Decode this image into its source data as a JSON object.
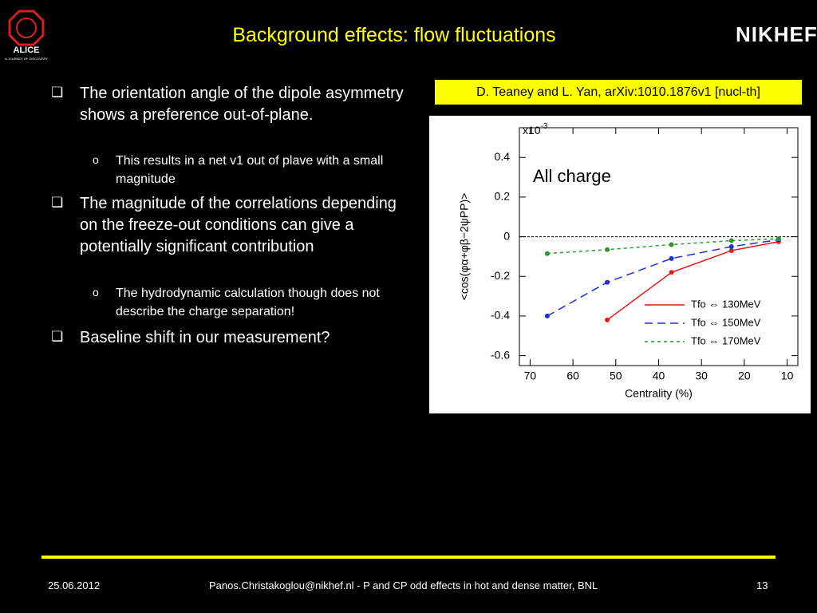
{
  "header": {
    "title": "Background effects: flow fluctuations",
    "logo_left": "ALICE",
    "logo_left_tagline": "A JOURNEY OF DISCOVERY",
    "logo_right": "NIKHEF"
  },
  "bullets": [
    {
      "text": "The orientation angle of the dipole asymmetry shows a preference out-of-plane.",
      "sub": [
        "This results in a net v1 out of plave with a small magnitude"
      ]
    },
    {
      "text": "The magnitude of the correlations depending on the freeze-out conditions can give a potentially significant contribution",
      "sub": [
        "The hydrodynamic calculation though does not describe the charge separation!"
      ]
    },
    {
      "text": "Baseline shift in our measurement?",
      "sub": []
    }
  ],
  "citation": "D. Teaney and L. Yan, arXiv:1010.1876v1 [nucl-th]",
  "chart_data": {
    "type": "line",
    "annotation": "All charge",
    "y_multiplier": "x10",
    "y_multiplier_exp": "-3",
    "xlabel": "Centrality (%)",
    "ylabel": "<cos(φα+φβ−2ψPP)>",
    "x": [
      66,
      52,
      37,
      23,
      12
    ],
    "xlim": [
      72.5,
      7.5
    ],
    "xticks": [
      70,
      60,
      50,
      40,
      30,
      20,
      10
    ],
    "ylim": [
      -0.65,
      0.55
    ],
    "yticks": [
      0.4,
      0.2,
      0,
      -0.2,
      -0.4,
      -0.6
    ],
    "series": [
      {
        "name": "Tfo ⇔ 130MeV",
        "color": "#e8191a",
        "dash": "none",
        "values": [
          null,
          -0.42,
          -0.18,
          -0.07,
          -0.025
        ]
      },
      {
        "name": "Tfo ⇔ 150MeV",
        "color": "#1d2fe0",
        "dash": "10 6",
        "values": [
          -0.4,
          -0.23,
          -0.11,
          -0.05,
          -0.015
        ]
      },
      {
        "name": "Tfo ⇔ 170MeV",
        "color": "#2a9a2a",
        "dash": "4 4",
        "values": [
          -0.085,
          -0.065,
          -0.04,
          -0.02,
          -0.01
        ]
      }
    ]
  },
  "footer": {
    "date": "25.06.2012",
    "text": "Panos.Christakoglou@nikhef.nl - P and CP odd effects in hot and dense matter, BNL",
    "page": "13"
  }
}
